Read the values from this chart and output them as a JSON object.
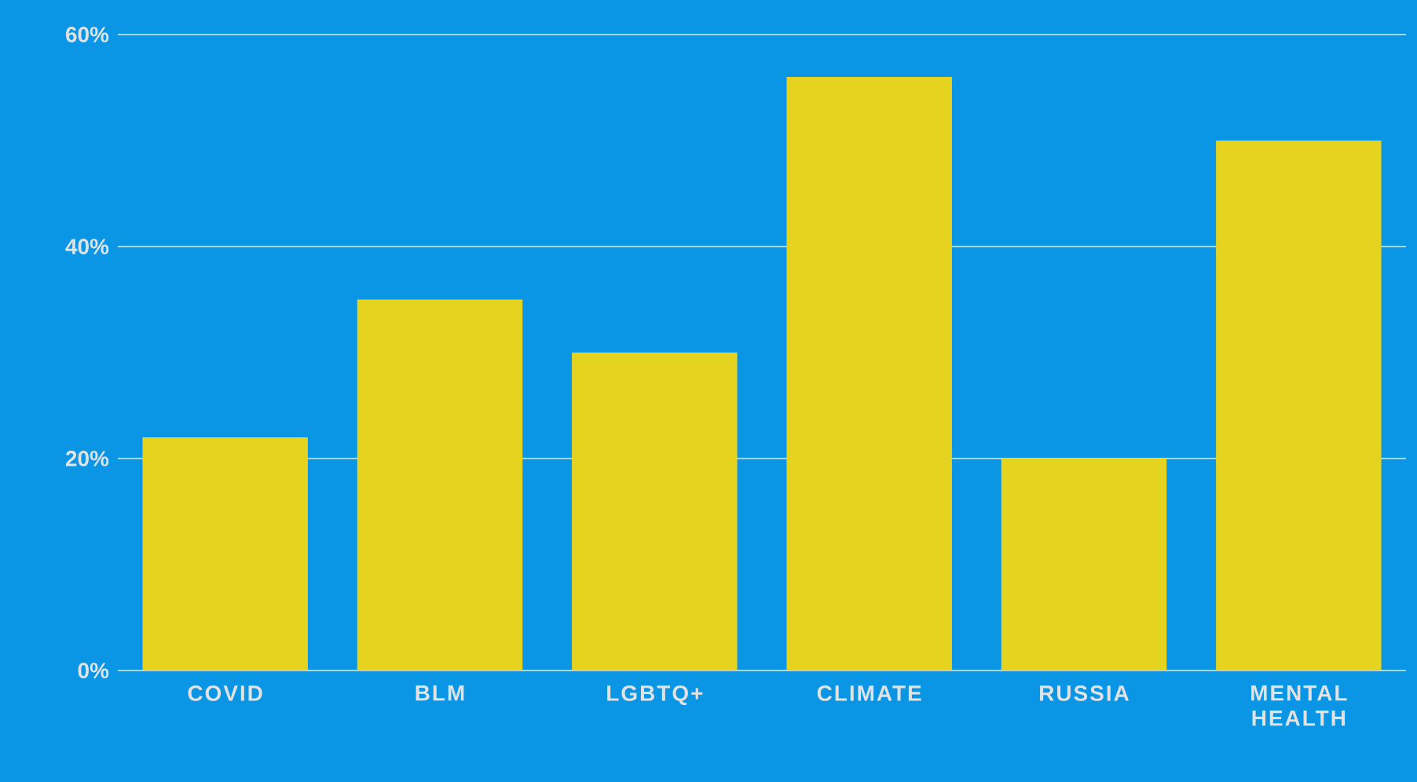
{
  "chart_data": {
    "type": "bar",
    "categories": [
      "COVID",
      "BLM",
      "LGBTQ+",
      "CLIMATE",
      "RUSSIA",
      "MENTAL HEALTH"
    ],
    "values": [
      22,
      35,
      30,
      56,
      20,
      50
    ],
    "color": "#e6d31f",
    "ylim": [
      0,
      60
    ],
    "yticks": [
      {
        "value": 0,
        "label": "0%"
      },
      {
        "value": 20,
        "label": "20%"
      },
      {
        "value": 40,
        "label": "40%"
      },
      {
        "value": 60,
        "label": "60%"
      }
    ],
    "grid": "y"
  }
}
